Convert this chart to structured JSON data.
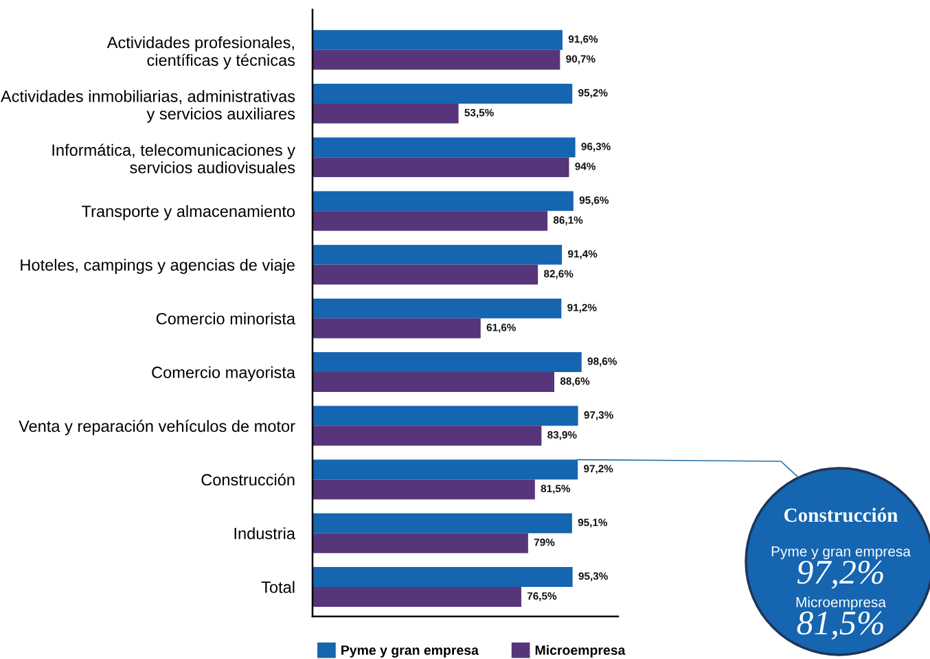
{
  "chart_data": {
    "type": "bar",
    "orientation": "horizontal",
    "categories": [
      "Actividades profesionales,\ncientíficas y técnicas",
      "Actividades inmobiliarias, administrativas\ny servicios auxiliares",
      "Informática, telecomunicaciones y\nservicios audiovisuales",
      "Transporte y almacenamiento",
      "Hoteles, campings y agencias de viaje",
      "Comercio minorista",
      "Comercio mayorista",
      "Venta y reparación vehículos de motor",
      "Construcción",
      "Industria",
      "Total"
    ],
    "series": [
      {
        "name": "Pyme y gran empresa",
        "color": "#1565b0",
        "values": [
          91.6,
          95.2,
          96.3,
          95.6,
          91.4,
          91.2,
          98.6,
          97.3,
          97.2,
          95.1,
          95.3
        ],
        "value_labels": [
          "91,6%",
          "95,2%",
          "96,3%",
          "95,6%",
          "91,4%",
          "91,2%",
          "98,6%",
          "97,3%",
          "97,2%",
          "95,1%",
          "95,3%"
        ]
      },
      {
        "name": "Microempresa",
        "color": "#56357a",
        "values": [
          90.7,
          53.5,
          94,
          86.1,
          82.6,
          61.6,
          88.6,
          83.9,
          81.5,
          79,
          76.5
        ],
        "value_labels": [
          "90,7%",
          "53,5%",
          "94%",
          "86,1%",
          "82,6%",
          "61,6%",
          "88,6%",
          "83,9%",
          "81,5%",
          "79%",
          "76,5%"
        ]
      }
    ],
    "xlim": [
      0,
      112
    ],
    "tick_labels": "y",
    "grid": false,
    "legend": "bottom",
    "annotations": [
      "Construcción",
      "Pyme y gran empresa",
      "97,2%",
      "Microempresa",
      "81,5%"
    ]
  }
}
